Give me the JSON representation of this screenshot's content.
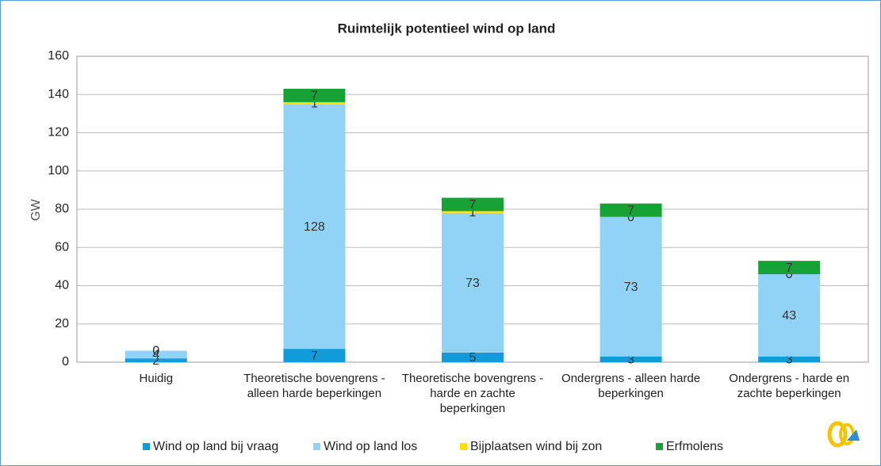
{
  "chart_data": {
    "type": "stacked_bar",
    "title": "Ruimtelijk potentieel wind op land",
    "ylabel": "GW",
    "categories": [
      "Huidig",
      "Theoretische bovengrens - alleen harde beperkingen",
      "Theoretische bovengrens - harde en zachte beperkingen",
      "Ondergrens - alleen harde beperkingen",
      "Ondergrens - harde en zachte beperkingen"
    ],
    "series": [
      {
        "name": "Wind op land bij vraag",
        "color": "#119bdb",
        "values": [
          2,
          7,
          5,
          3,
          3
        ]
      },
      {
        "name": "Wind op land los",
        "color": "#91d2f7",
        "values": [
          4,
          128,
          73,
          73,
          43
        ]
      },
      {
        "name": "Bijplaatsen wind bij zon",
        "color": "#ffe100",
        "values": [
          0,
          1,
          1,
          0,
          0
        ]
      },
      {
        "name": "Erfmolens",
        "color": "#16a234",
        "values": [
          0,
          7,
          7,
          7,
          7
        ]
      }
    ],
    "ylim": [
      0,
      160
    ],
    "yticks": [
      0,
      20,
      40,
      60,
      80,
      100,
      120,
      140,
      160
    ],
    "grid": true,
    "legend": "bottom"
  }
}
